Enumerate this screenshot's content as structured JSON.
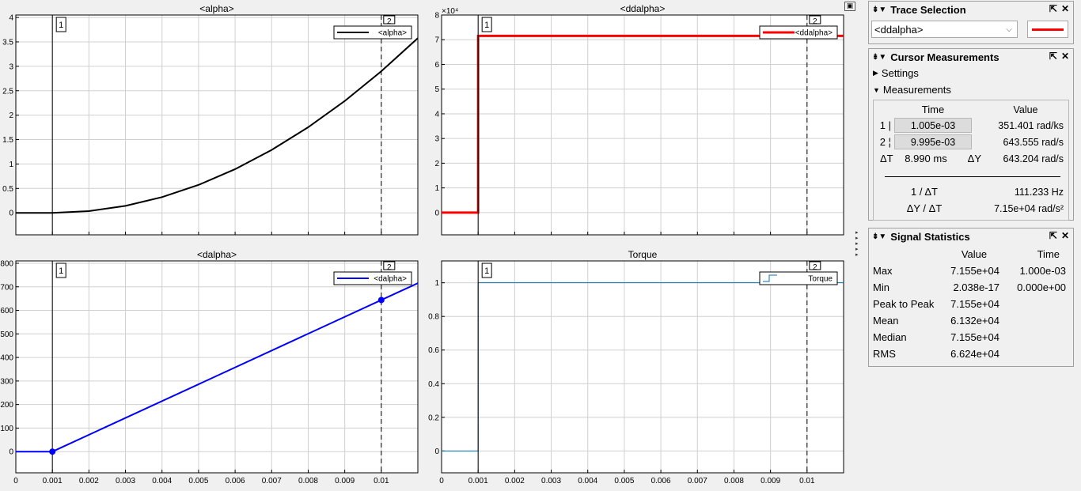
{
  "plots": [
    {
      "title": "<alpha>",
      "legend": "<alpha>",
      "color": "#000000",
      "exponent": "",
      "ylim": [
        -0.45,
        4.05
      ],
      "yticks": [
        0,
        0.5,
        1,
        1.5,
        2,
        2.5,
        3,
        3.5,
        4
      ],
      "ytick_labels": [
        "0",
        "0.5",
        "1",
        "1.5",
        "2",
        "2.5",
        "3",
        "3.5",
        "4"
      ],
      "xticks": [
        0,
        0.001,
        0.002,
        0.003,
        0.004,
        0.005,
        0.006,
        0.007,
        0.008,
        0.009,
        0.01
      ],
      "xtick_labels": [],
      "xlim": [
        0,
        0.011
      ],
      "line_width": 2,
      "cursor_dots": false,
      "data": [
        [
          0,
          0
        ],
        [
          0.001,
          0
        ],
        [
          0.002,
          0.036
        ],
        [
          0.003,
          0.143
        ],
        [
          0.004,
          0.322
        ],
        [
          0.005,
          0.572
        ],
        [
          0.006,
          0.894
        ],
        [
          0.007,
          1.288
        ],
        [
          0.008,
          1.753
        ],
        [
          0.009,
          2.29
        ],
        [
          0.01,
          2.898
        ],
        [
          0.011,
          3.577
        ]
      ]
    },
    {
      "title": "<ddalpha>",
      "legend": "<ddalpha>",
      "color": "#ff0000",
      "exponent": "×10⁴",
      "ylim": [
        -0.9,
        8
      ],
      "yticks": [
        0,
        1,
        2,
        3,
        4,
        5,
        6,
        7,
        8
      ],
      "ytick_labels": [
        "0",
        "1",
        "2",
        "3",
        "4",
        "5",
        "6",
        "7",
        "8"
      ],
      "xticks": [
        0,
        0.001,
        0.002,
        0.003,
        0.004,
        0.005,
        0.006,
        0.007,
        0.008,
        0.009,
        0.01
      ],
      "xtick_labels": [],
      "xlim": [
        0,
        0.011
      ],
      "line_width": 3,
      "cursor_dots": false,
      "data": [
        [
          0,
          0
        ],
        [
          0.001,
          0
        ],
        [
          0.001,
          7.155
        ],
        [
          0.011,
          7.155
        ]
      ]
    },
    {
      "title": "<dalpha>",
      "legend": "<dalpha>",
      "color": "#0000ff",
      "exponent": "",
      "ylim": [
        -90,
        810
      ],
      "yticks": [
        0,
        100,
        200,
        300,
        400,
        500,
        600,
        700,
        800
      ],
      "ytick_labels": [
        "0",
        "100",
        "200",
        "300",
        "400",
        "500",
        "600",
        "700",
        "800"
      ],
      "xticks": [
        0,
        0.001,
        0.002,
        0.003,
        0.004,
        0.005,
        0.006,
        0.007,
        0.008,
        0.009,
        0.01
      ],
      "xtick_labels": [
        "0",
        "0.001",
        "0.002",
        "0.003",
        "0.004",
        "0.005",
        "0.006",
        "0.007",
        "0.008",
        "0.009",
        "0.01"
      ],
      "xlim": [
        0,
        0.011
      ],
      "line_width": 2,
      "cursor_dots": true,
      "data": [
        [
          0,
          0
        ],
        [
          0.001,
          0
        ],
        [
          0.011,
          715.5
        ]
      ]
    },
    {
      "title": "Torque",
      "legend": "Torque",
      "color": "#0072bd",
      "exponent": "",
      "ylim": [
        -0.13,
        1.13
      ],
      "yticks": [
        0,
        0.2,
        0.4,
        0.6,
        0.8,
        1
      ],
      "ytick_labels": [
        "0",
        "0.2",
        "0.4",
        "0.6",
        "0.8",
        "1"
      ],
      "xticks": [
        0,
        0.001,
        0.002,
        0.003,
        0.004,
        0.005,
        0.006,
        0.007,
        0.008,
        0.009,
        0.01
      ],
      "xtick_labels": [
        "0",
        "0.001",
        "0.002",
        "0.003",
        "0.004",
        "0.005",
        "0.006",
        "0.007",
        "0.008",
        "0.009",
        "0.01"
      ],
      "xlim": [
        0,
        0.011
      ],
      "line_width": 1,
      "cursor_dots": false,
      "legend_style": "stair",
      "data": [
        [
          0,
          0
        ],
        [
          0.001,
          0
        ],
        [
          0.001,
          1
        ],
        [
          0.011,
          1
        ]
      ]
    }
  ],
  "cursors": {
    "c1_time": 0.001,
    "c2_time": 0.01,
    "c1_label": "1",
    "c2_label": "2"
  },
  "trace_selection": {
    "title": "Trace Selection",
    "selected": "<ddalpha>",
    "color": "#ff0000"
  },
  "cursor_measurements": {
    "title": "Cursor Measurements",
    "settings_label": "Settings",
    "measurements_label": "Measurements",
    "col_time": "Time",
    "col_value": "Value",
    "row1_idx": "1",
    "row1_time": "1.005e-03",
    "row1_value": "351.401 rad/ks",
    "row2_idx": "2",
    "row2_time": "9.995e-03",
    "row2_value": "643.555 rad/s",
    "dt_label": "ΔT",
    "dt_value": "8.990 ms",
    "dy_label": "ΔY",
    "dy_value": "643.204 rad/s",
    "inv_dt_label": "1 / ΔT",
    "inv_dt_value": "111.233 Hz",
    "dydt_label": "ΔY / ΔT",
    "dydt_value": "7.15e+04 rad/s²"
  },
  "signal_statistics": {
    "title": "Signal Statistics",
    "col_value": "Value",
    "col_time": "Time",
    "rows": [
      {
        "label": "Max",
        "value": "7.155e+04",
        "time": "1.000e-03"
      },
      {
        "label": "Min",
        "value": "2.038e-17",
        "time": "0.000e+00"
      },
      {
        "label": "Peak to Peak",
        "value": "7.155e+04",
        "time": ""
      },
      {
        "label": "Mean",
        "value": "6.132e+04",
        "time": ""
      },
      {
        "label": "Median",
        "value": "7.155e+04",
        "time": ""
      },
      {
        "label": "RMS",
        "value": "6.624e+04",
        "time": ""
      }
    ]
  },
  "icons": {
    "panel_collapse": "collapse-icon",
    "panel_close": "close-icon",
    "panel_undock": "undock-icon",
    "dropdown": "chevron-down-icon"
  }
}
